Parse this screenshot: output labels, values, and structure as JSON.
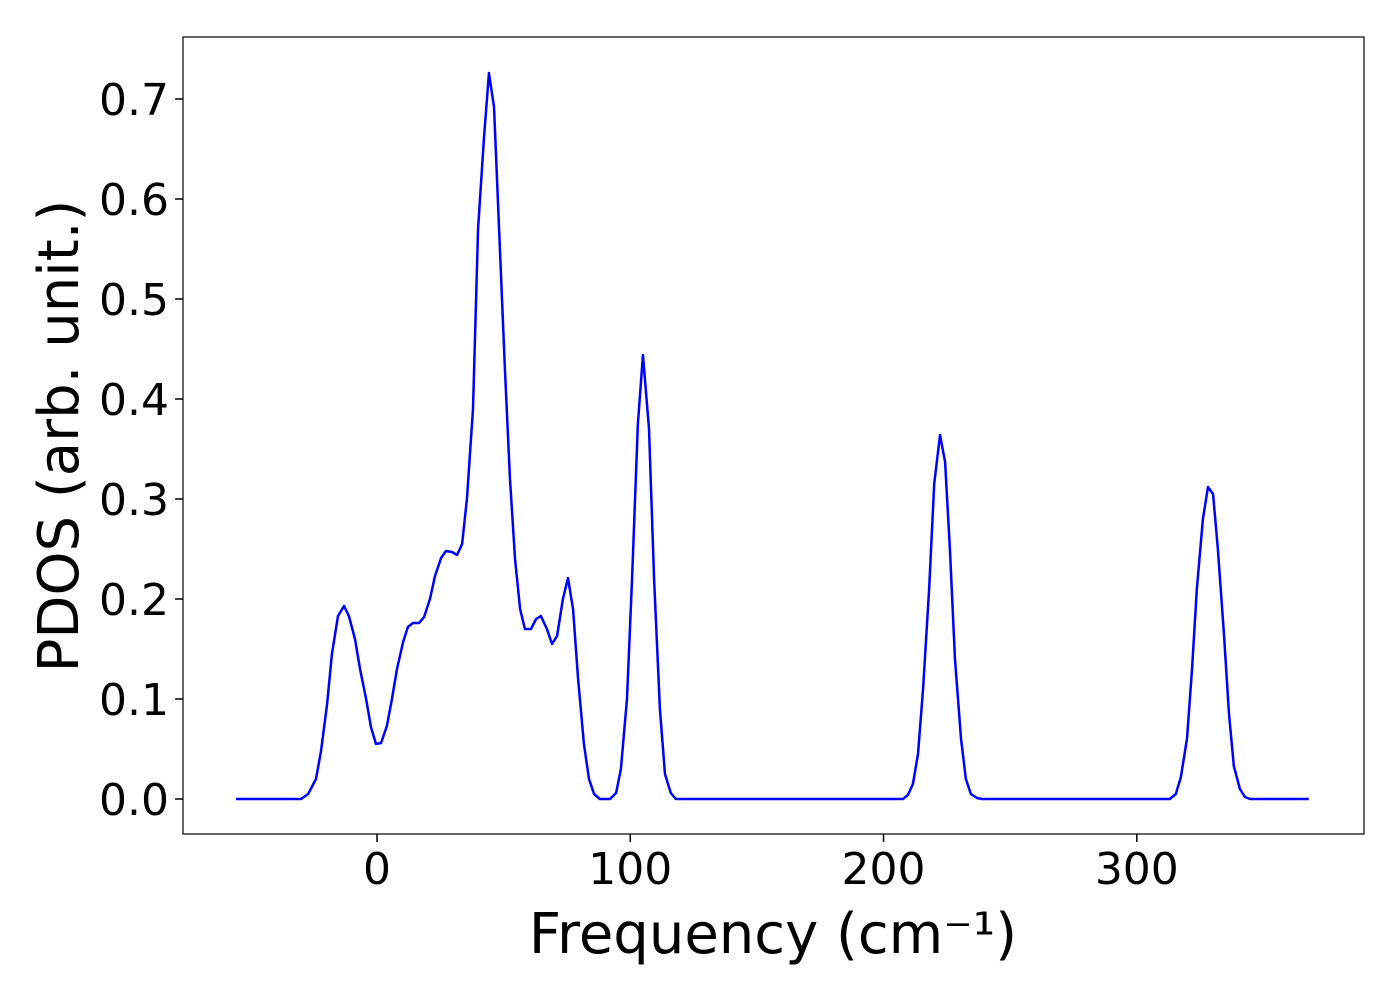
{
  "chart_data": {
    "type": "line",
    "x_label": "Frequency (cm⁻¹)",
    "y_label": "PDOS (arb. unit.)",
    "x": [
      -55.7,
      -32,
      -30,
      -27.2,
      -24.1,
      -22.1,
      -19.7,
      -17.8,
      -15.4,
      -13,
      -11.1,
      -8.7,
      -6.7,
      -4.3,
      -2.4,
      -0.4,
      1.6,
      3.9,
      5.9,
      7.9,
      10.3,
      12.2,
      14.2,
      16.6,
      18.6,
      20.9,
      22.9,
      25.3,
      27.2,
      29.6,
      31.6,
      33.6,
      35.5,
      37.9,
      39.9,
      42.2,
      44.2,
      46.2,
      48.2,
      50.5,
      52.5,
      54.5,
      56.5,
      58.4,
      60.8,
      62.8,
      64.7,
      67.1,
      69.1,
      71.1,
      73.4,
      75.4,
      77.4,
      79.4,
      81.7,
      83.7,
      85.7,
      88,
      90,
      92,
      94.4,
      96.3,
      98.7,
      100.7,
      103,
      105,
      107.4,
      109.4,
      111.7,
      113.7,
      116,
      118,
      207.7,
      209.6,
      211.6,
      213.6,
      215.6,
      218,
      220,
      222.3,
      224.3,
      226.2,
      228.2,
      230.6,
      232.5,
      234.5,
      236.9,
      238.8,
      313,
      315.4,
      317.4,
      319.8,
      321.8,
      323.7,
      326.1,
      328.1,
      330.1,
      332,
      334.4,
      336.4,
      338.3,
      340.7,
      342.7,
      344.7,
      367.9
    ],
    "series": [
      {
        "color": "#0000ff",
        "values": [
          0,
          0,
          0,
          0.005,
          0.02,
          0.048,
          0.095,
          0.145,
          0.183,
          0.193,
          0.183,
          0.16,
          0.13,
          0.1,
          0.072,
          0.055,
          0.056,
          0.073,
          0.1,
          0.13,
          0.157,
          0.172,
          0.176,
          0.176,
          0.182,
          0.2,
          0.223,
          0.241,
          0.248,
          0.247,
          0.244,
          0.255,
          0.3,
          0.39,
          0.57,
          0.66,
          0.726,
          0.692,
          0.57,
          0.43,
          0.32,
          0.24,
          0.19,
          0.17,
          0.17,
          0.18,
          0.183,
          0.17,
          0.155,
          0.163,
          0.2,
          0.221,
          0.19,
          0.12,
          0.055,
          0.02,
          0.005,
          0,
          0,
          0,
          0.006,
          0.03,
          0.1,
          0.22,
          0.375,
          0.444,
          0.37,
          0.22,
          0.09,
          0.025,
          0.006,
          0,
          0,
          0.004,
          0.015,
          0.045,
          0.11,
          0.21,
          0.315,
          0.364,
          0.337,
          0.25,
          0.14,
          0.06,
          0.02,
          0.005,
          0.001,
          0,
          0,
          0.005,
          0.022,
          0.06,
          0.13,
          0.21,
          0.28,
          0.312,
          0.305,
          0.25,
          0.165,
          0.085,
          0.033,
          0.01,
          0.002,
          0,
          0
        ]
      }
    ],
    "xlim": [
      -76.6,
      389.7
    ],
    "xticks": [
      0,
      100,
      200,
      300
    ],
    "ylim": [
      -0.035,
      0.762
    ],
    "yticks": [
      {
        "value": 0,
        "label": "0.0"
      },
      0.1,
      0.2,
      0.3,
      0.4,
      0.5,
      0.6,
      0.7
    ]
  }
}
